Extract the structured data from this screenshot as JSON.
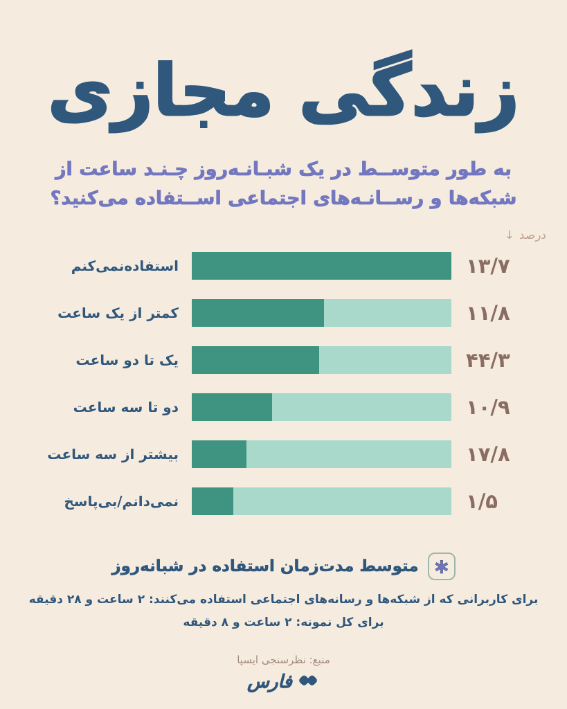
{
  "poster": {
    "title": "زندگی مجازی",
    "subtitle_line1": "به طور متوســط در یک شبـانـه‌روز چـنـد ساعت از",
    "subtitle_line2": "شبکه‌ها و رســانـه‌های اجتماعی اســتفاده می‌کنید؟",
    "unit_header": {
      "arrow": "↓",
      "label": "درصد"
    }
  },
  "chart_data": {
    "type": "bar",
    "orientation": "horizontal",
    "title": "به طور متوسط در یک شبانه‌روز چند ساعت از شبکه‌ها و رسانه‌های اجتماعی استفاده می‌کنید؟",
    "unit": "درصد",
    "legend": "none",
    "grid": false,
    "categories": [
      "استفاده‌نمی‌کنم",
      "کمتر از یک ساعت",
      "یک تا دو ساعت",
      "دو تا سه ساعت",
      "بیشتر از سه ساعت",
      "نمی‌دانم/بی‌پاسخ"
    ],
    "values": [
      13.7,
      11.8,
      44.3,
      10.9,
      17.8,
      1.5
    ],
    "value_labels": [
      "۱۳/۷",
      "۱۱/۸",
      "۴۴/۳",
      "۱۰/۹",
      "۱۷/۸",
      "۱/۵"
    ],
    "bar_dark_fraction": [
      1.0,
      0.51,
      0.49,
      0.31,
      0.21,
      0.16
    ],
    "colors": {
      "bar_dark": "#3f9381",
      "bar_light": "#a9d9cb"
    }
  },
  "footnote": {
    "badge_glyph": "∗",
    "heading": "متوسط مدت‌زمان استفاده در شبانه‌روز",
    "line1": "برای کاربرانی که از شبکه‌ها و رسانه‌های اجتماعی استفاده می‌کنند: ۲ ساعت و ۲۸ دقیقه",
    "line2": "برای کل نمونه: ۲ ساعت و ۸ دقیقه"
  },
  "source": {
    "label": "منبع: نظرسنجی ایسپا"
  },
  "brand": {
    "name": "فارس"
  },
  "theme": {
    "background": "#f5ecdf",
    "title_color": "#30577c",
    "subtitle_color": "#7277c0",
    "value_color": "#8a6c64",
    "unit_header_color": "#bfa08e",
    "badge_border": "#9fb7a8",
    "badge_asterisk": "#7770bd",
    "source_color": "#a28b7e"
  }
}
